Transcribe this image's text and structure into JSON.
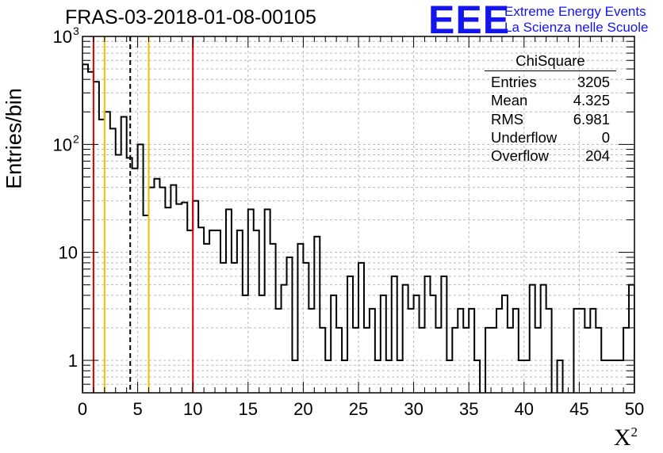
{
  "title": "FRAS-03-2018-01-08-00105",
  "logo": {
    "mark": "EEE",
    "line1": "Extreme Energy Events",
    "line2": "La Scienza nelle Scuole"
  },
  "stats_box": {
    "title": "ChiSquare",
    "rows": [
      {
        "label": "Entries",
        "value": "3205"
      },
      {
        "label": "Mean",
        "value": "4.325"
      },
      {
        "label": "RMS",
        "value": "6.981"
      },
      {
        "label": "Underflow",
        "value": "0"
      },
      {
        "label": "Overflow",
        "value": "204"
      }
    ]
  },
  "chart_data": {
    "type": "histogram-step",
    "xlabel": "X",
    "xlabel_sup": "2",
    "ylabel": "Entries/bin",
    "xlim": [
      0,
      50
    ],
    "ylim": [
      0.5,
      1000
    ],
    "yscale": "log",
    "bin_width": 0.5,
    "x_ticks": [
      0,
      5,
      10,
      15,
      20,
      25,
      30,
      35,
      40,
      45,
      50
    ],
    "y_tick_labels": [
      {
        "value": 1,
        "label": "1"
      },
      {
        "value": 10,
        "label": "10"
      },
      {
        "value": 100,
        "label": "10",
        "sup": "2"
      },
      {
        "value": 1000,
        "label": "10",
        "sup": "3"
      }
    ],
    "bin_values": [
      550,
      470,
      380,
      170,
      200,
      140,
      80,
      180,
      75,
      60,
      100,
      22,
      40,
      48,
      40,
      26,
      42,
      28,
      29,
      16,
      30,
      17,
      12,
      16,
      16,
      8,
      25,
      8,
      16,
      4,
      25,
      16,
      4,
      25,
      12,
      3,
      5,
      9,
      1,
      12,
      8,
      3,
      14,
      2,
      1,
      4,
      2,
      1,
      6,
      2,
      8,
      2,
      3,
      1,
      4,
      1,
      6,
      1,
      5,
      3,
      4,
      2,
      6,
      4,
      2,
      6,
      1,
      2,
      3,
      2,
      3,
      1,
      0,
      2,
      2,
      3,
      4,
      2,
      3,
      1,
      1,
      5,
      2,
      5,
      3,
      0,
      1,
      0,
      0,
      3,
      3,
      2,
      3,
      2,
      1,
      1,
      1,
      1,
      2,
      5
    ],
    "grid": true,
    "vertical_lines": [
      {
        "x": 1,
        "color": "#e00000",
        "style": "solid"
      },
      {
        "x": 2,
        "color": "#f0c000",
        "style": "solid"
      },
      {
        "x": 4.325,
        "color": "#000000",
        "style": "dashed"
      },
      {
        "x": 6,
        "color": "#f0c000",
        "style": "solid"
      },
      {
        "x": 10,
        "color": "#e00000",
        "style": "solid"
      }
    ],
    "legend": "top-right"
  }
}
